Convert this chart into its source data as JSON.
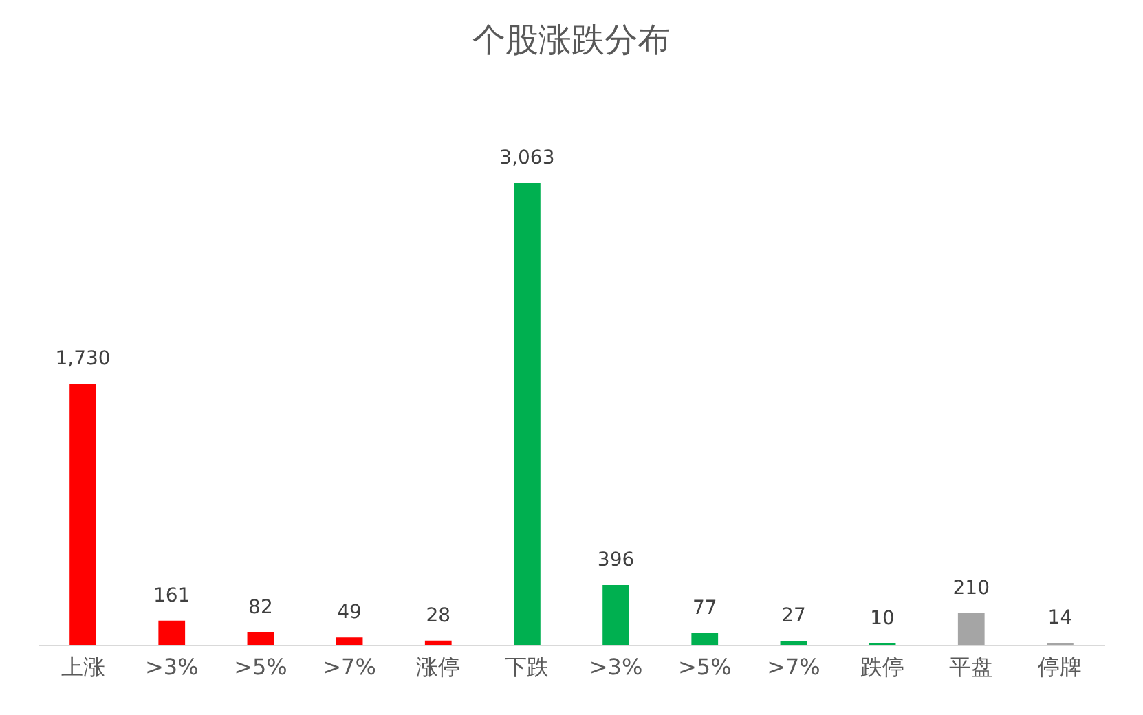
{
  "chart_data": {
    "type": "bar",
    "title": "个股涨跌分布",
    "categories": [
      "上涨",
      ">3%",
      ">5%",
      ">7%",
      "涨停",
      "下跌",
      ">3%",
      ">5%",
      ">7%",
      "跌停",
      "平盘",
      "停牌"
    ],
    "values": [
      1730,
      161,
      82,
      49,
      28,
      3063,
      396,
      77,
      27,
      10,
      210,
      14
    ],
    "value_labels": [
      "1,730",
      "161",
      "82",
      "49",
      "28",
      "3,063",
      "396",
      "77",
      "27",
      "10",
      "210",
      "14"
    ],
    "colors": [
      "#ff0000",
      "#ff0000",
      "#ff0000",
      "#ff0000",
      "#ff0000",
      "#00b050",
      "#00b050",
      "#00b050",
      "#00b050",
      "#00b050",
      "#a5a5a5",
      "#a5a5a5"
    ]
  }
}
